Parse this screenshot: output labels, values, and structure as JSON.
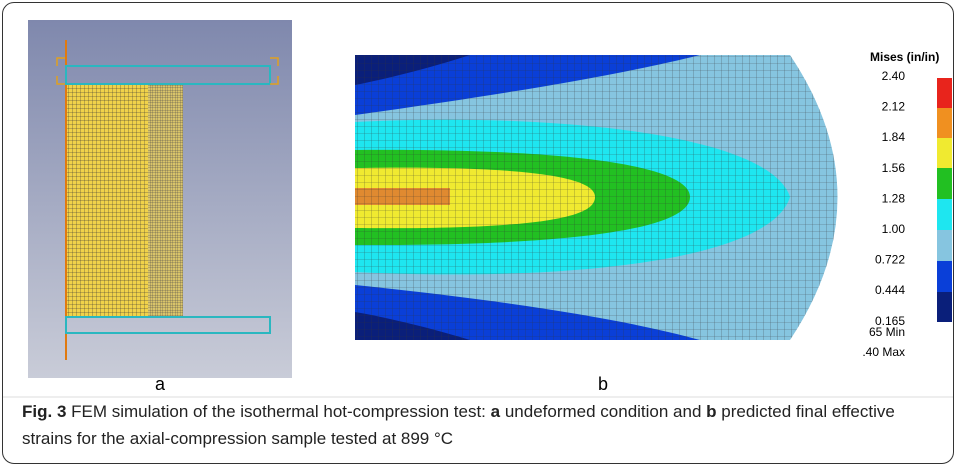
{
  "figure": {
    "left_panel": {
      "label": "a"
    },
    "right_panel": {
      "label": "b",
      "legend": {
        "title": "Mises (in/in)",
        "levels": [
          "2.40",
          "2.12",
          "1.84",
          "1.56",
          "1.28",
          "1.00",
          "0.722",
          "0.444",
          "0.165"
        ],
        "min_label": "65  Min",
        "max_label": ".40  Max"
      }
    },
    "caption": {
      "fig_label": "Fig. 3",
      "parts": [
        {
          "text": " FEM simulation of the isothermal hot-compression test: ",
          "bold": false
        },
        {
          "text": "a",
          "bold": true
        },
        {
          "text": " undeformed condition and ",
          "bold": false
        },
        {
          "text": "b",
          "bold": true
        },
        {
          "text": " predicted final effective strains for the axial-compression sample tested at 899 °C",
          "bold": false
        }
      ]
    }
  }
}
